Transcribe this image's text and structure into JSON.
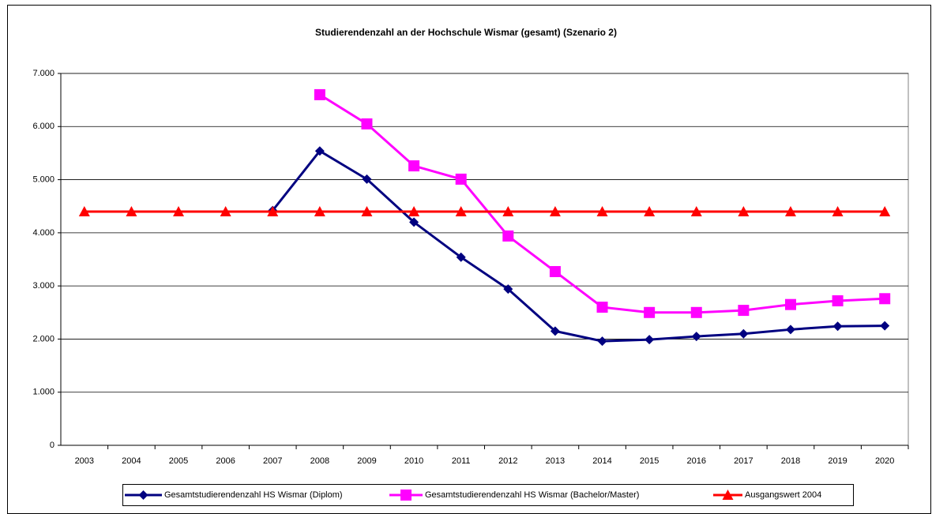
{
  "chart_data": {
    "type": "line",
    "title": "Studierendenzahl an der Hochschule Wismar (gesamt) (Szenario 2)",
    "categories": [
      "2003",
      "2004",
      "2005",
      "2006",
      "2007",
      "2008",
      "2009",
      "2010",
      "2011",
      "2012",
      "2013",
      "2014",
      "2015",
      "2016",
      "2017",
      "2018",
      "2019",
      "2020"
    ],
    "series": [
      {
        "name": "Gesamtstudierendenzahl HS Wismar (Diplom)",
        "color": "#000080",
        "marker": "diamond",
        "values": [
          null,
          null,
          null,
          null,
          4420,
          5540,
          5010,
          4200,
          3540,
          2940,
          2150,
          1960,
          1990,
          2050,
          2100,
          2180,
          2240,
          2250
        ]
      },
      {
        "name": "Gesamtstudierendenzahl HS Wismar (Bachelor/Master)",
        "color": "#ff00ff",
        "marker": "square",
        "values": [
          null,
          null,
          null,
          null,
          null,
          6600,
          6050,
          5260,
          5010,
          3940,
          3270,
          2600,
          2500,
          2500,
          2540,
          2650,
          2720,
          2760
        ]
      },
      {
        "name": "Ausgangswert 2004",
        "color": "#ff0000",
        "marker": "triangle",
        "values": [
          4400,
          4400,
          4400,
          4400,
          4400,
          4400,
          4400,
          4400,
          4400,
          4400,
          4400,
          4400,
          4400,
          4400,
          4400,
          4400,
          4400,
          4400
        ]
      }
    ],
    "ylim": [
      0,
      7000
    ],
    "yticks": [
      0,
      {
        "value": 1000,
        "label": "1.000"
      },
      {
        "value": 2000,
        "label": "2.000"
      },
      {
        "value": 3000,
        "label": "3.000"
      },
      {
        "value": 4000,
        "label": "4.000"
      },
      {
        "value": 5000,
        "label": "5.000"
      },
      {
        "value": 6000,
        "label": "6.000"
      },
      {
        "value": 7000,
        "label": "7.000"
      }
    ],
    "grid": true,
    "legend": "bottom"
  }
}
